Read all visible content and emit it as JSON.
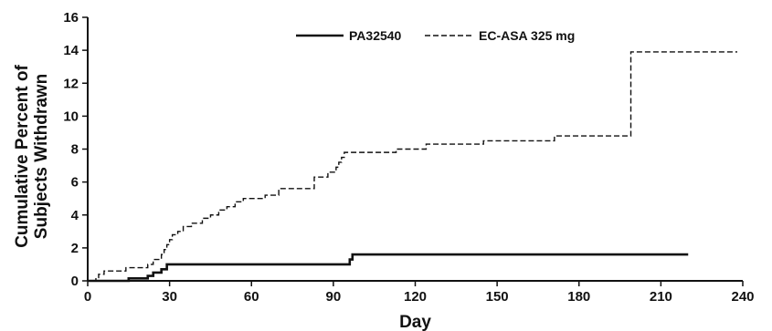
{
  "chart_data": {
    "type": "line",
    "title": "",
    "xlabel": "Day",
    "ylabel_lines": [
      "Cumulative Percent of",
      "Subjects Withdrawn"
    ],
    "xlim": [
      0,
      240
    ],
    "ylim": [
      0,
      16
    ],
    "xticks": [
      0,
      30,
      60,
      90,
      120,
      150,
      180,
      210,
      240
    ],
    "yticks": [
      0,
      2,
      4,
      6,
      8,
      10,
      12,
      14,
      16
    ],
    "grid": false,
    "legend_position": "top-center",
    "series": [
      {
        "name": "PA32540",
        "style": "solid",
        "color": "#111111",
        "step_points": [
          [
            0,
            0
          ],
          [
            15,
            0.15
          ],
          [
            22,
            0.3
          ],
          [
            24,
            0.5
          ],
          [
            27,
            0.7
          ],
          [
            29,
            1.0
          ],
          [
            96,
            1.3
          ],
          [
            97,
            1.6
          ],
          [
            220,
            1.6
          ]
        ]
      },
      {
        "name": "EC-ASA 325 mg",
        "style": "dashed",
        "color": "#111111",
        "step_points": [
          [
            2,
            0
          ],
          [
            3,
            0.2
          ],
          [
            4,
            0.4
          ],
          [
            6,
            0.6
          ],
          [
            14,
            0.8
          ],
          [
            22,
            1.0
          ],
          [
            24,
            1.3
          ],
          [
            27,
            1.6
          ],
          [
            28,
            1.9
          ],
          [
            29,
            2.2
          ],
          [
            30,
            2.5
          ],
          [
            31,
            2.8
          ],
          [
            33,
            3.0
          ],
          [
            35,
            3.3
          ],
          [
            38,
            3.5
          ],
          [
            42,
            3.8
          ],
          [
            45,
            4.0
          ],
          [
            48,
            4.3
          ],
          [
            51,
            4.5
          ],
          [
            54,
            4.8
          ],
          [
            57,
            5.0
          ],
          [
            65,
            5.2
          ],
          [
            70,
            5.6
          ],
          [
            83,
            6.3
          ],
          [
            88,
            6.6
          ],
          [
            91,
            6.9
          ],
          [
            92,
            7.2
          ],
          [
            93,
            7.5
          ],
          [
            94,
            7.8
          ],
          [
            104,
            7.8
          ],
          [
            113,
            8.0
          ],
          [
            124,
            8.3
          ],
          [
            145,
            8.5
          ],
          [
            171,
            8.8
          ],
          [
            199,
            13.9
          ],
          [
            238,
            13.9
          ]
        ]
      }
    ]
  }
}
